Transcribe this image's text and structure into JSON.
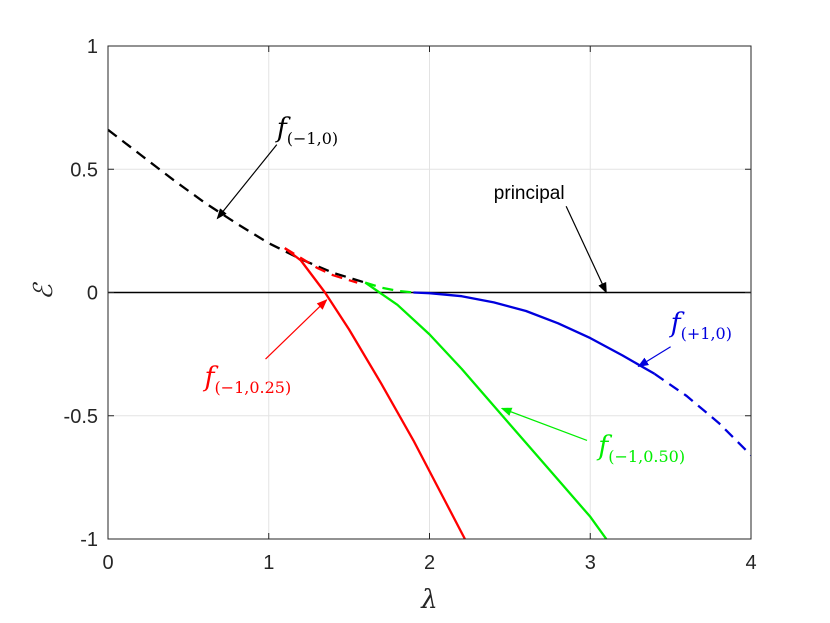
{
  "chart_data": {
    "type": "line",
    "xlabel": "λ",
    "ylabel": "ℰ",
    "xlim": [
      0,
      4
    ],
    "ylim": [
      -1,
      1
    ],
    "xticks": [
      0,
      1,
      2,
      3,
      4
    ],
    "xtick_labels": [
      "0",
      "1",
      "2",
      "3",
      "4"
    ],
    "yticks": [
      -1,
      -0.5,
      0,
      0.5,
      1
    ],
    "ytick_labels": [
      "-1",
      "-0.5",
      "0",
      "0.5",
      "1"
    ],
    "grid": true,
    "colors": {
      "principal": "#000000",
      "f_minus1_0": "#000000",
      "f_minus1_025": "#ff0000",
      "f_minus1_050": "#00ee00",
      "f_plus1_0": "#0000dd"
    },
    "series": [
      {
        "name": "principal",
        "style": "solid",
        "color": "#000000",
        "x": [
          0,
          4
        ],
        "y": [
          0,
          0
        ]
      },
      {
        "name": "f(−1,0)",
        "style": "dashed",
        "color": "#000000",
        "x": [
          0,
          0.2,
          0.4,
          0.6,
          0.8,
          1.0,
          1.2,
          1.4,
          1.6
        ],
        "y": [
          0.66,
          0.56,
          0.46,
          0.365,
          0.28,
          0.2,
          0.135,
          0.08,
          0.04
        ]
      },
      {
        "name": "f(−1,0.25) dashed",
        "style": "dashed",
        "color": "#ff0000",
        "x": [
          1.1,
          1.2,
          1.3,
          1.4,
          1.5,
          1.55
        ],
        "y": [
          0.18,
          0.14,
          0.1,
          0.07,
          0.05,
          0.04
        ]
      },
      {
        "name": "f(−1,0.25)",
        "style": "solid",
        "color": "#ff0000",
        "x": [
          1.1,
          1.2,
          1.35,
          1.5,
          1.7,
          1.9,
          2.1,
          2.22
        ],
        "y": [
          0.18,
          0.13,
          0.0,
          -0.15,
          -0.37,
          -0.6,
          -0.85,
          -1.0
        ]
      },
      {
        "name": "f(−1,0.50) dashed",
        "style": "dashed",
        "color": "#00ee00",
        "x": [
          1.6,
          1.7,
          1.8,
          1.9
        ],
        "y": [
          0.04,
          0.02,
          0.007,
          0.0
        ]
      },
      {
        "name": "f(−1,0.50)",
        "style": "solid",
        "color": "#00ee00",
        "x": [
          1.6,
          1.8,
          2.0,
          2.2,
          2.4,
          2.6,
          2.8,
          3.0,
          3.1
        ],
        "y": [
          0.04,
          -0.05,
          -0.17,
          -0.31,
          -0.46,
          -0.61,
          -0.76,
          -0.91,
          -1.0
        ]
      },
      {
        "name": "f(+1,0)",
        "style": "solid",
        "color": "#0000dd",
        "x": [
          1.9,
          2.0,
          2.2,
          2.4,
          2.6,
          2.8,
          3.0,
          3.2,
          3.4
        ],
        "y": [
          0.0,
          -0.003,
          -0.015,
          -0.04,
          -0.075,
          -0.125,
          -0.185,
          -0.255,
          -0.33
        ]
      },
      {
        "name": "f(+1,0) dashed",
        "style": "dashed",
        "color": "#0000dd",
        "x": [
          3.4,
          3.6,
          3.8,
          4.0
        ],
        "y": [
          -0.33,
          -0.42,
          -0.53,
          -0.66
        ]
      }
    ],
    "annotations": [
      {
        "label_base": "f",
        "label_sub": "(−1,0)",
        "color": "#000000",
        "text_at": [
          1.05,
          0.63
        ],
        "arrow_from": [
          1.05,
          0.6
        ],
        "arrow_to": [
          0.68,
          0.3
        ]
      },
      {
        "label_base": "principal",
        "label_sub": "",
        "color": "#000000",
        "text_at": [
          2.4,
          0.38
        ],
        "arrow_from": [
          2.85,
          0.35
        ],
        "arrow_to": [
          3.1,
          0.0
        ]
      },
      {
        "label_base": "f",
        "label_sub": "(+1,0)",
        "color": "#0000dd",
        "text_at": [
          3.5,
          -0.16
        ],
        "arrow_from": [
          3.5,
          -0.22
        ],
        "arrow_to": [
          3.3,
          -0.3
        ]
      },
      {
        "label_base": "f",
        "label_sub": "(−1,0.25)",
        "color": "#ff0000",
        "text_at": [
          0.6,
          -0.38
        ],
        "arrow_from": [
          0.98,
          -0.27
        ],
        "arrow_to": [
          1.36,
          -0.03
        ]
      },
      {
        "label_base": "f",
        "label_sub": "(−1,0.50)",
        "color": "#00ee00",
        "text_at": [
          3.05,
          -0.66
        ],
        "arrow_from": [
          2.98,
          -0.6
        ],
        "arrow_to": [
          2.45,
          -0.47
        ]
      }
    ]
  }
}
